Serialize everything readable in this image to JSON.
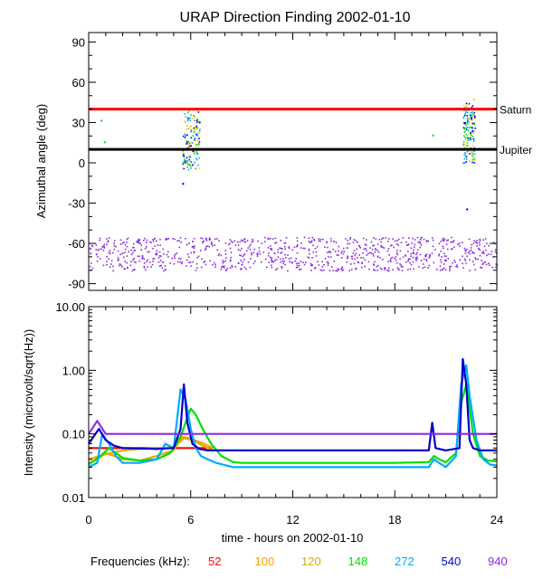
{
  "chart_data": [
    {
      "type": "scatter",
      "title": "URAP Direction Finding  2002-01-10",
      "ylabel": "Azimuthal angle (deg)",
      "xlim": [
        0,
        24
      ],
      "ylim": [
        -95,
        97
      ],
      "yticks": [
        {
          "v": 90,
          "label": "90"
        },
        {
          "v": 60,
          "label": "60"
        },
        {
          "v": 30,
          "label": "30"
        },
        {
          "v": 0,
          "label": "0"
        },
        {
          "v": -30,
          "label": "-30"
        },
        {
          "v": -60,
          "label": "-60"
        },
        {
          "v": -90,
          "label": "-90"
        }
      ],
      "reference_lines": [
        {
          "name": "Saturn",
          "value": 40,
          "color": "#ff0000"
        },
        {
          "name": "Jupiter",
          "value": 10,
          "color": "#000000"
        }
      ],
      "clusters": [
        {
          "name": "cluster-1",
          "x_range": [
            5.5,
            6.5
          ],
          "y_range": [
            -5,
            40
          ],
          "count": 150,
          "colors": [
            "#00e000",
            "#ffc000",
            "#00aaff",
            "#0000cc"
          ]
        },
        {
          "name": "cluster-2",
          "x_range": [
            22.0,
            22.7
          ],
          "y_range": [
            0,
            45
          ],
          "count": 150,
          "colors": [
            "#00aaff",
            "#00e000",
            "#ffc000",
            "#0000cc"
          ]
        },
        {
          "name": "band-940",
          "x_range": [
            0,
            24
          ],
          "y_range": [
            -80,
            -55
          ],
          "count": 900,
          "colors": [
            "#8b2be2"
          ]
        }
      ],
      "points": [
        {
          "x": 0.7,
          "y": 32,
          "color": "#00aaff"
        },
        {
          "x": 0.9,
          "y": 16,
          "color": "#00e000"
        },
        {
          "x": 5.5,
          "y": -15,
          "color": "#0000cc"
        },
        {
          "x": 20.2,
          "y": 21,
          "color": "#00e000"
        },
        {
          "x": 22.2,
          "y": -34,
          "color": "#0000cc"
        },
        {
          "x": 22.6,
          "y": 48,
          "color": "#ffc000"
        }
      ]
    },
    {
      "type": "line",
      "ylabel": "Intensity (microvolt/sqrt(Hz))",
      "xlabel": "time - hours on 2002-01-10",
      "xlim": [
        0,
        24
      ],
      "ylim": [
        0.01,
        10
      ],
      "yscale": "log",
      "xticks": [
        {
          "v": 0,
          "label": "0"
        },
        {
          "v": 6,
          "label": "6"
        },
        {
          "v": 12,
          "label": "12"
        },
        {
          "v": 18,
          "label": "18"
        },
        {
          "v": 24,
          "label": "24"
        }
      ],
      "yticks": [
        {
          "v": 10,
          "label": "10.00"
        },
        {
          "v": 1,
          "label": "1.00"
        },
        {
          "v": 0.1,
          "label": "0.10"
        },
        {
          "v": 0.01,
          "label": "0.01"
        }
      ],
      "series": [
        {
          "name": "52",
          "color": "#ff0000",
          "x": [
            0,
            3,
            5,
            7.3
          ],
          "y": [
            0.06,
            0.06,
            0.06,
            0.06
          ]
        },
        {
          "name": "100",
          "color": "#ffa000",
          "x": [
            0,
            1,
            2,
            3,
            4,
            5,
            5.6,
            6.2,
            6.8,
            7.3
          ],
          "y": [
            0.04,
            0.048,
            0.055,
            0.058,
            0.06,
            0.062,
            0.085,
            0.08,
            0.07,
            0.06
          ]
        },
        {
          "name": "120",
          "color": "#d4b000",
          "x": [
            0,
            0.5,
            1,
            1.5,
            2,
            3,
            4,
            4.5,
            5,
            5.5,
            6,
            6.5,
            7,
            7.3
          ],
          "y": [
            0.035,
            0.04,
            0.05,
            0.045,
            0.04,
            0.038,
            0.045,
            0.05,
            0.055,
            0.09,
            0.085,
            0.07,
            0.06,
            0.055
          ]
        },
        {
          "name": "148",
          "color": "#00e000",
          "x": [
            0,
            0.7,
            1.2,
            2,
            3,
            4,
            4.8,
            5.4,
            5.8,
            6.0,
            6.3,
            6.7,
            7.2,
            7.8,
            8.5,
            9,
            12,
            18,
            20,
            20.3,
            20.6,
            21,
            21.6,
            21.9,
            22.2,
            22.6,
            23,
            23.5,
            24
          ],
          "y": [
            0.033,
            0.045,
            0.06,
            0.042,
            0.038,
            0.04,
            0.05,
            0.09,
            0.18,
            0.25,
            0.2,
            0.12,
            0.07,
            0.045,
            0.036,
            0.035,
            0.035,
            0.035,
            0.036,
            0.045,
            0.04,
            0.036,
            0.05,
            0.3,
            0.6,
            0.1,
            0.045,
            0.038,
            0.037
          ]
        },
        {
          "name": "272",
          "color": "#00aaff",
          "x": [
            0,
            0.5,
            0.8,
            1.2,
            1.6,
            2,
            3,
            4,
            4.5,
            5,
            5.4,
            5.7,
            6,
            6.3,
            6.6,
            7,
            7.5,
            8.5,
            9.5,
            12,
            18,
            20,
            20.3,
            20.6,
            21,
            21.6,
            21.9,
            22.2,
            22.4,
            22.8,
            23.2,
            23.6,
            24
          ],
          "y": [
            0.03,
            0.035,
            0.1,
            0.07,
            0.045,
            0.035,
            0.035,
            0.04,
            0.07,
            0.06,
            0.5,
            0.35,
            0.12,
            0.06,
            0.045,
            0.04,
            0.035,
            0.03,
            0.03,
            0.03,
            0.03,
            0.03,
            0.04,
            0.035,
            0.03,
            0.045,
            0.6,
            1.2,
            0.4,
            0.08,
            0.04,
            0.033,
            0.032
          ]
        },
        {
          "name": "540",
          "color": "#0000cc",
          "x": [
            0,
            0.6,
            1,
            1.5,
            2,
            4,
            5,
            5.4,
            5.6,
            5.8,
            6.1,
            6.5,
            7,
            12,
            20,
            20.2,
            20.4,
            21,
            21.8,
            22,
            22.2,
            22.4,
            22.6,
            23,
            24
          ],
          "y": [
            0.07,
            0.12,
            0.08,
            0.065,
            0.06,
            0.058,
            0.06,
            0.12,
            0.6,
            0.15,
            0.07,
            0.058,
            0.055,
            0.055,
            0.055,
            0.15,
            0.06,
            0.055,
            0.06,
            1.5,
            0.6,
            0.08,
            0.06,
            0.055,
            0.055
          ]
        },
        {
          "name": "940",
          "color": "#8b2be2",
          "x": [
            0,
            0.5,
            1,
            24
          ],
          "y": [
            0.1,
            0.16,
            0.1,
            0.1
          ]
        }
      ]
    }
  ],
  "legend": {
    "label": "Frequencies (kHz):",
    "items": [
      {
        "label": "52",
        "color": "#ff0000"
      },
      {
        "label": "100",
        "color": "#ffa000"
      },
      {
        "label": "120",
        "color": "#d4b000"
      },
      {
        "label": "148",
        "color": "#00e000"
      },
      {
        "label": "272",
        "color": "#00aaff"
      },
      {
        "label": "540",
        "color": "#0000cc"
      },
      {
        "label": "940",
        "color": "#8b2be2"
      }
    ]
  }
}
